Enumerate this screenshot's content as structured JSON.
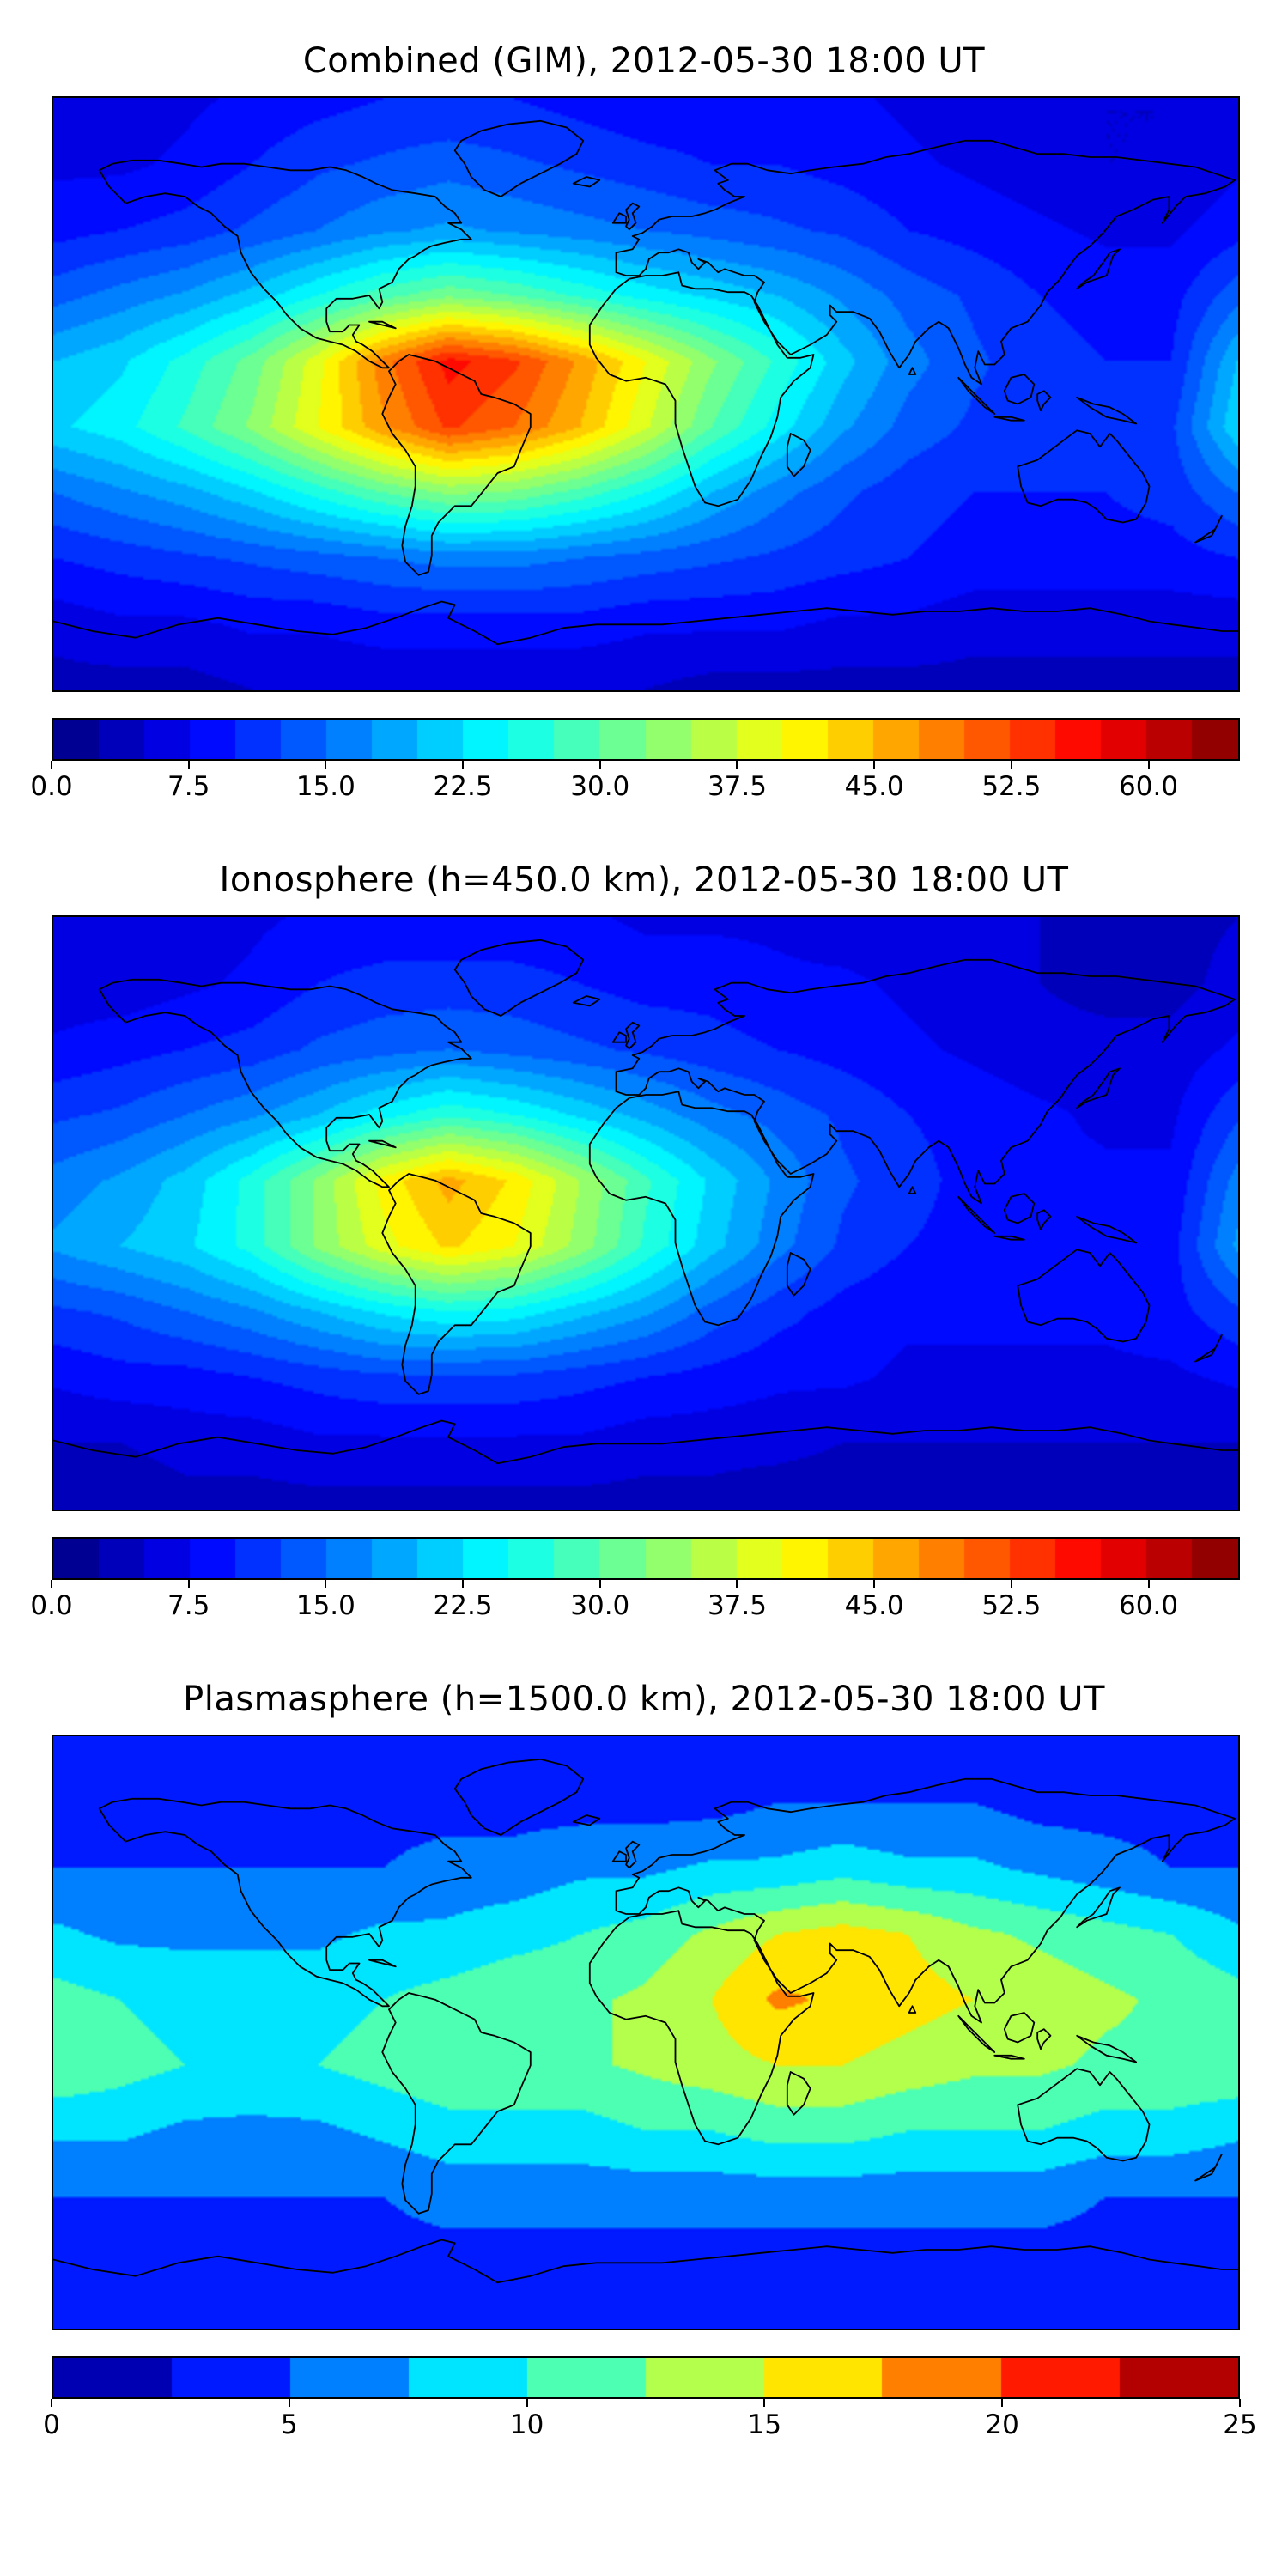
{
  "figure": {
    "background": "#ffffff",
    "colormap": "jet",
    "frame_color": "#000000"
  },
  "chart_data": [
    {
      "type": "heatmap",
      "title": "Combined (GIM), 2012-05-30 18:00 UT",
      "colormap": "jet",
      "projection": "equirectangular",
      "extent": {
        "lon": [
          -180,
          180
        ],
        "lat": [
          -90,
          90
        ]
      },
      "vmin": 0,
      "vmax": 65,
      "level_step": 2.5,
      "colorbar": {
        "ticks": [
          0,
          7.5,
          15,
          22.5,
          30,
          37.5,
          45,
          52.5,
          60
        ],
        "tick_labels": [
          "0.0",
          "7.5",
          "15.0",
          "22.5",
          "30.0",
          "37.5",
          "45.0",
          "52.5",
          "60.0"
        ]
      },
      "lon": [
        -180,
        -160,
        -140,
        -120,
        -100,
        -80,
        -60,
        -40,
        -20,
        0,
        20,
        40,
        60,
        80,
        100,
        120,
        140,
        160,
        180
      ],
      "lat": [
        90,
        70,
        50,
        30,
        10,
        -10,
        -30,
        -50,
        -70,
        -90
      ],
      "values": [
        [
          6,
          6,
          7,
          8,
          9,
          10,
          10,
          10,
          9,
          8,
          8,
          8,
          8,
          7,
          6,
          5,
          5,
          5,
          6
        ],
        [
          7,
          7,
          8,
          10,
          12,
          13,
          14,
          13,
          12,
          11,
          10,
          10,
          9,
          8,
          7,
          6,
          5,
          5,
          7
        ],
        [
          9,
          10,
          11,
          13,
          15,
          17,
          18,
          17,
          16,
          15,
          14,
          13,
          12,
          10,
          9,
          8,
          7,
          7,
          9
        ],
        [
          14,
          16,
          18,
          21,
          25,
          29,
          32,
          30,
          27,
          24,
          22,
          20,
          17,
          14,
          12,
          10,
          9,
          9,
          14
        ],
        [
          20,
          22,
          26,
          31,
          39,
          49,
          56,
          53,
          47,
          40,
          33,
          27,
          21,
          16,
          13,
          11,
          10,
          10,
          20
        ],
        [
          22,
          24,
          28,
          33,
          40,
          47,
          53,
          50,
          45,
          38,
          30,
          24,
          18,
          14,
          12,
          11,
          11,
          12,
          22
        ],
        [
          15,
          17,
          19,
          22,
          26,
          30,
          33,
          32,
          29,
          25,
          20,
          16,
          13,
          11,
          10,
          10,
          10,
          11,
          15
        ],
        [
          10,
          11,
          12,
          13,
          14,
          15,
          16,
          16,
          15,
          14,
          13,
          12,
          11,
          10,
          9,
          9,
          9,
          9,
          10
        ],
        [
          6,
          7,
          7,
          8,
          8,
          9,
          9,
          9,
          9,
          8,
          8,
          8,
          7,
          7,
          6,
          6,
          6,
          6,
          6
        ],
        [
          4,
          4,
          4,
          5,
          5,
          5,
          5,
          5,
          5,
          5,
          4,
          4,
          4,
          4,
          4,
          4,
          4,
          4,
          4
        ]
      ]
    },
    {
      "type": "heatmap",
      "title": "Ionosphere  (h=450.0 km), 2012-05-30 18:00 UT",
      "colormap": "jet",
      "projection": "equirectangular",
      "extent": {
        "lon": [
          -180,
          180
        ],
        "lat": [
          -90,
          90
        ]
      },
      "vmin": 0,
      "vmax": 65,
      "level_step": 2.5,
      "colorbar": {
        "ticks": [
          0,
          7.5,
          15,
          22.5,
          30,
          37.5,
          45,
          52.5,
          60
        ],
        "tick_labels": [
          "0.0",
          "7.5",
          "15.0",
          "22.5",
          "30.0",
          "37.5",
          "45.0",
          "52.5",
          "60.0"
        ]
      },
      "lon": [
        -180,
        -160,
        -140,
        -120,
        -100,
        -80,
        -60,
        -40,
        -20,
        0,
        20,
        40,
        60,
        80,
        100,
        120,
        140,
        160,
        180
      ],
      "lat": [
        90,
        70,
        50,
        30,
        10,
        -10,
        -30,
        -50,
        -70,
        -90
      ],
      "values": [
        [
          5,
          5,
          6,
          7,
          8,
          8,
          8,
          8,
          8,
          7,
          7,
          7,
          6,
          6,
          5,
          5,
          4,
          4,
          5
        ],
        [
          6,
          6,
          7,
          8,
          10,
          11,
          11,
          11,
          10,
          9,
          9,
          8,
          8,
          7,
          6,
          5,
          4,
          4,
          6
        ],
        [
          8,
          9,
          10,
          11,
          13,
          14,
          15,
          14,
          13,
          12,
          11,
          10,
          9,
          8,
          7,
          6,
          6,
          6,
          8
        ],
        [
          12,
          13,
          15,
          17,
          20,
          24,
          27,
          25,
          22,
          19,
          16,
          14,
          12,
          10,
          9,
          8,
          7,
          7,
          12
        ],
        [
          16,
          18,
          21,
          26,
          33,
          41,
          46,
          42,
          35,
          28,
          22,
          17,
          13,
          11,
          9,
          8,
          8,
          8,
          16
        ],
        [
          18,
          20,
          22,
          26,
          33,
          39,
          43,
          40,
          34,
          27,
          21,
          16,
          12,
          10,
          9,
          8,
          8,
          9,
          18
        ],
        [
          12,
          13,
          15,
          17,
          20,
          23,
          25,
          24,
          21,
          18,
          14,
          11,
          9,
          8,
          8,
          8,
          8,
          9,
          12
        ],
        [
          8,
          9,
          9,
          10,
          11,
          12,
          12,
          12,
          11,
          10,
          9,
          8,
          8,
          7,
          7,
          7,
          7,
          7,
          8
        ],
        [
          5,
          5,
          6,
          6,
          7,
          7,
          7,
          7,
          7,
          6,
          6,
          6,
          5,
          5,
          5,
          5,
          5,
          5,
          5
        ],
        [
          3,
          3,
          4,
          4,
          4,
          4,
          4,
          4,
          4,
          4,
          4,
          3,
          3,
          3,
          3,
          3,
          3,
          3,
          3
        ]
      ]
    },
    {
      "type": "heatmap",
      "title": "Plasmasphere (h=1500.0 km), 2012-05-30 18:00 UT",
      "colormap": "jet",
      "projection": "equirectangular",
      "extent": {
        "lon": [
          -180,
          180
        ],
        "lat": [
          -90,
          90
        ]
      },
      "vmin": 0,
      "vmax": 25,
      "level_step": 2.5,
      "colorbar": {
        "ticks": [
          0,
          5,
          10,
          15,
          20,
          25
        ],
        "tick_labels": [
          "0",
          "5",
          "10",
          "15",
          "20",
          "25"
        ]
      },
      "lon": [
        -180,
        -160,
        -140,
        -120,
        -100,
        -80,
        -60,
        -40,
        -20,
        0,
        20,
        40,
        60,
        80,
        100,
        120,
        140,
        160,
        180
      ],
      "lat": [
        90,
        70,
        50,
        30,
        10,
        -10,
        -30,
        -50,
        -70,
        -90
      ],
      "values": [
        [
          3,
          3,
          3,
          3,
          3,
          3,
          3,
          3,
          3,
          3,
          3,
          3,
          3,
          3,
          3,
          3,
          3,
          3,
          3
        ],
        [
          4,
          4,
          4,
          4,
          4,
          4,
          4,
          4,
          4,
          4,
          4,
          5,
          5,
          5,
          5,
          4,
          4,
          4,
          4
        ],
        [
          5,
          5,
          5,
          5,
          5,
          5,
          6,
          6,
          7,
          7,
          8,
          8,
          9,
          8,
          8,
          7,
          6,
          5,
          5
        ],
        [
          8,
          7,
          7,
          7,
          7,
          8,
          8,
          9,
          10,
          11,
          13,
          15,
          16,
          15,
          13,
          12,
          11,
          10,
          8
        ],
        [
          11,
          10,
          9,
          9,
          9,
          10,
          11,
          12,
          12,
          13,
          15,
          18,
          17,
          16,
          15,
          14,
          13,
          12,
          11
        ],
        [
          12,
          11,
          10,
          9,
          10,
          11,
          12,
          12,
          12,
          13,
          14,
          15,
          15,
          14,
          13,
          13,
          12,
          12,
          12
        ],
        [
          8,
          8,
          7,
          7,
          7,
          8,
          9,
          9,
          9,
          10,
          10,
          11,
          11,
          10,
          10,
          10,
          9,
          9,
          8
        ],
        [
          5,
          5,
          5,
          5,
          5,
          5,
          6,
          6,
          6,
          6,
          6,
          6,
          6,
          6,
          6,
          6,
          5,
          5,
          5
        ],
        [
          4,
          4,
          4,
          4,
          4,
          4,
          4,
          4,
          4,
          4,
          4,
          4,
          4,
          4,
          4,
          4,
          4,
          4,
          4
        ],
        [
          3,
          3,
          3,
          3,
          3,
          3,
          3,
          3,
          3,
          3,
          3,
          3,
          3,
          3,
          3,
          3,
          3,
          3,
          3
        ]
      ]
    }
  ]
}
